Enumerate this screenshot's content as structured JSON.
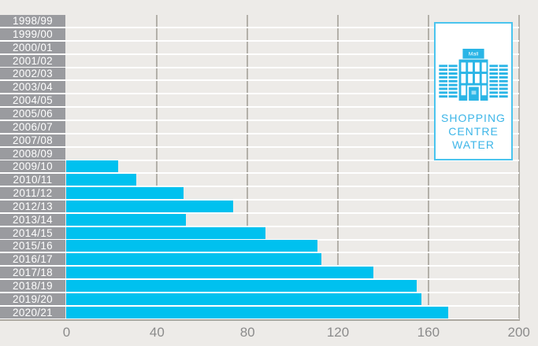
{
  "page": {
    "background_color": "#edebe8"
  },
  "chart_data": {
    "type": "bar",
    "orientation": "horizontal",
    "title": "",
    "xlabel": "",
    "ylabel": "",
    "categories": [
      "1998/99",
      "1999/00",
      "2000/01",
      "2001/02",
      "2002/03",
      "2003/04",
      "2004/05",
      "2005/06",
      "2006/07",
      "2007/08",
      "2008/09",
      "2009/10",
      "2010/11",
      "2011/12",
      "2012/13",
      "2013/14",
      "2014/15",
      "2015/16",
      "2016/17",
      "2017/18",
      "2018/19",
      "2019/20",
      "2020/21"
    ],
    "values": [
      0,
      0,
      0,
      0,
      0,
      0,
      0,
      0,
      0,
      0,
      0,
      23,
      31,
      52,
      74,
      53,
      88,
      111,
      113,
      136,
      155,
      157,
      169
    ],
    "x_ticks": [
      0,
      40,
      80,
      120,
      160,
      200
    ],
    "xlim": [
      0,
      200
    ],
    "grid": true,
    "bar_color": "#00c1ef",
    "category_box_color": "#9a9b9f",
    "category_text_color": "#ffffff",
    "gridline_color": "#b3b0a9",
    "axis_text_color": "#8b8b8b",
    "legend_position": "top-right"
  },
  "logo": {
    "icon": "shopping-mall-building-icon",
    "icon_sign_text": "Mall",
    "lines": [
      "SHOPPING",
      "CENTRE",
      "WATER"
    ],
    "border_color": "#4ac4ee",
    "text_color": "#3eb6e8"
  }
}
